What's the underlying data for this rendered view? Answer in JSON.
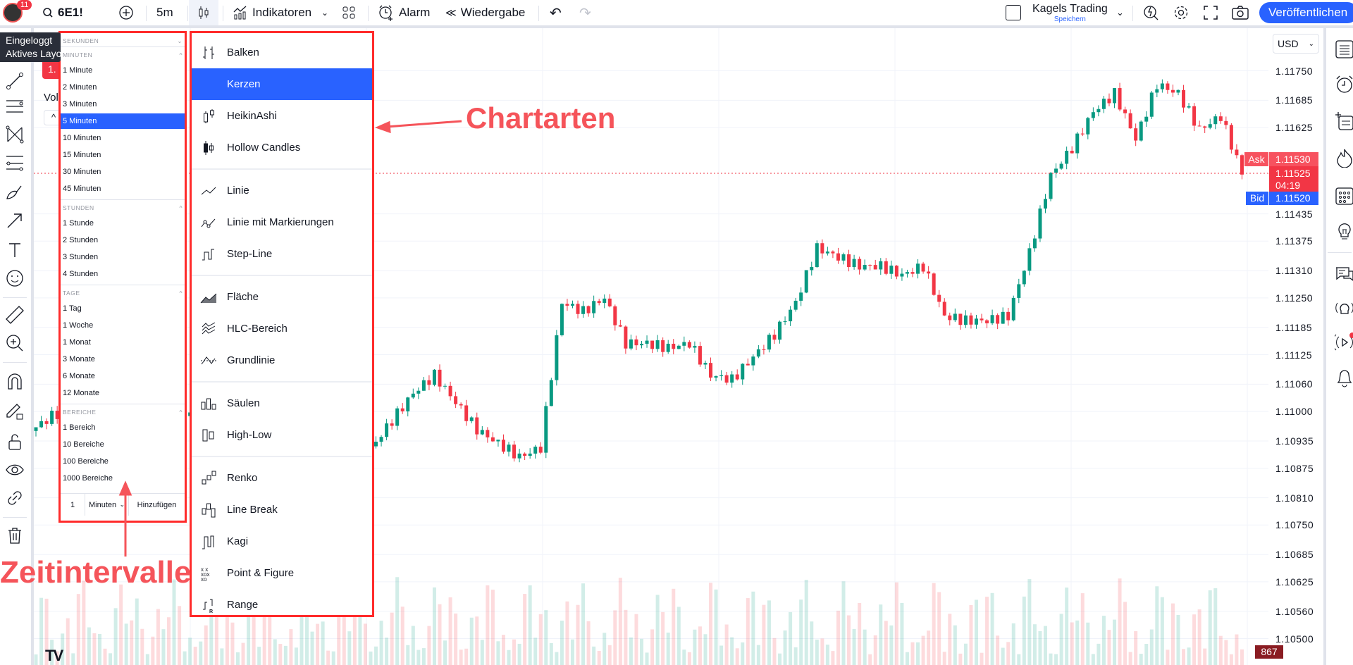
{
  "topbar": {
    "notification_count": "11",
    "symbol": "6E1!",
    "interval": "5m",
    "indicators_label": "Indikatoren",
    "alarm_label": "Alarm",
    "replay_label": "Wiedergabe",
    "layout_name": "Kagels Trading",
    "layout_save": "Speichern",
    "publish_label": "Veröffentlichen"
  },
  "tooltip": {
    "line1": "Eingeloggt",
    "line2": "Aktives Layout"
  },
  "legend": {
    "badge": "1.",
    "volume_label": "Vol"
  },
  "currency": "USD",
  "intervals": {
    "sections": [
      {
        "title": "SEKUNDEN",
        "collapsed": true,
        "items": []
      },
      {
        "title": "MINUTEN",
        "items": [
          "1 Minute",
          "2 Minuten",
          "3 Minuten",
          "5 Minuten",
          "10 Minuten",
          "15 Minuten",
          "30 Minuten",
          "45 Minuten"
        ]
      },
      {
        "title": "STUNDEN",
        "items": [
          "1 Stunde",
          "2 Stunden",
          "3 Stunden",
          "4 Stunden"
        ]
      },
      {
        "title": "TAGE",
        "items": [
          "1 Tag",
          "1 Woche",
          "1 Monat",
          "3 Monate",
          "6 Monate",
          "12 Monate"
        ]
      },
      {
        "title": "BEREICHE",
        "items": [
          "1 Bereich",
          "10 Bereiche",
          "100 Bereiche",
          "1000 Bereiche"
        ]
      }
    ],
    "selected": "5 Minuten",
    "custom": {
      "value": "1",
      "unit": "Minuten",
      "add_label": "Hinzufügen"
    }
  },
  "chart_types": {
    "groups": [
      [
        {
          "label": "Balken",
          "icon": "bars-icon"
        },
        {
          "label": "Kerzen",
          "icon": "candles-icon"
        },
        {
          "label": "HeikinAshi",
          "icon": "heikin-ashi-icon"
        },
        {
          "label": "Hollow Candles",
          "icon": "hollow-candles-icon"
        }
      ],
      [
        {
          "label": "Linie",
          "icon": "line-icon"
        },
        {
          "label": "Linie mit Markierungen",
          "icon": "line-markers-icon"
        },
        {
          "label": "Step-Line",
          "icon": "step-line-icon"
        }
      ],
      [
        {
          "label": "Fläche",
          "icon": "area-icon"
        },
        {
          "label": "HLC-Bereich",
          "icon": "hlc-area-icon"
        },
        {
          "label": "Grundlinie",
          "icon": "baseline-icon"
        }
      ],
      [
        {
          "label": "Säulen",
          "icon": "columns-icon"
        },
        {
          "label": "High-Low",
          "icon": "high-low-icon"
        }
      ],
      [
        {
          "label": "Renko",
          "icon": "renko-icon"
        },
        {
          "label": "Line Break",
          "icon": "line-break-icon"
        },
        {
          "label": "Kagi",
          "icon": "kagi-icon"
        },
        {
          "label": "Point & Figure",
          "icon": "point-figure-icon"
        },
        {
          "label": "Range",
          "icon": "range-icon"
        }
      ]
    ],
    "selected": "Kerzen"
  },
  "annotations": {
    "chart_types": "Chartarten",
    "intervals": "Zeitintervalle"
  },
  "quote": {
    "ask_label": "Ask",
    "ask": "1.11530",
    "last": "1.11525",
    "countdown": "04:19",
    "bid_label": "Bid",
    "bid": "1.11520",
    "volume": "867"
  },
  "colors": {
    "accent": "#2962ff",
    "up": "#089981",
    "down": "#f23645",
    "annotation": "#f5545a",
    "highlight_border": "#ff2b2b"
  },
  "chart_data": {
    "type": "candlestick",
    "price_ticks": [
      "1.11750",
      "1.11685",
      "1.11625",
      "1.11435",
      "1.11375",
      "1.11310",
      "1.11250",
      "1.11185",
      "1.11125",
      "1.11060",
      "1.11000",
      "1.10935",
      "1.10875",
      "1.10810",
      "1.10750",
      "1.10685",
      "1.10625",
      "1.10560",
      "1.10500"
    ],
    "approx_closes": [
      1.10957,
      1.1099,
      1.1101,
      1.1097,
      1.1099,
      1.1102,
      1.11,
      1.1098,
      1.1101,
      1.1103,
      1.11,
      1.1098,
      1.1096,
      1.1099,
      1.1097,
      1.1094,
      1.10918,
      1.1098,
      1.1104,
      1.1108,
      1.1102,
      1.1096,
      1.1093,
      1.109,
      1.1092,
      1.1124,
      1.1122,
      1.1125,
      1.1115,
      1.1115,
      1.1114,
      1.1115,
      1.1108,
      1.1107,
      1.1112,
      1.1117,
      1.1124,
      1.1136,
      1.1134,
      1.1132,
      1.1132,
      1.113,
      1.1132,
      1.1121,
      1.112,
      1.112,
      1.1121,
      1.1135,
      1.1152,
      1.1158,
      1.1166,
      1.117,
      1.116,
      1.1172,
      1.117,
      1.1162,
      1.1165,
      1.11525
    ],
    "current_price": 1.11525
  }
}
